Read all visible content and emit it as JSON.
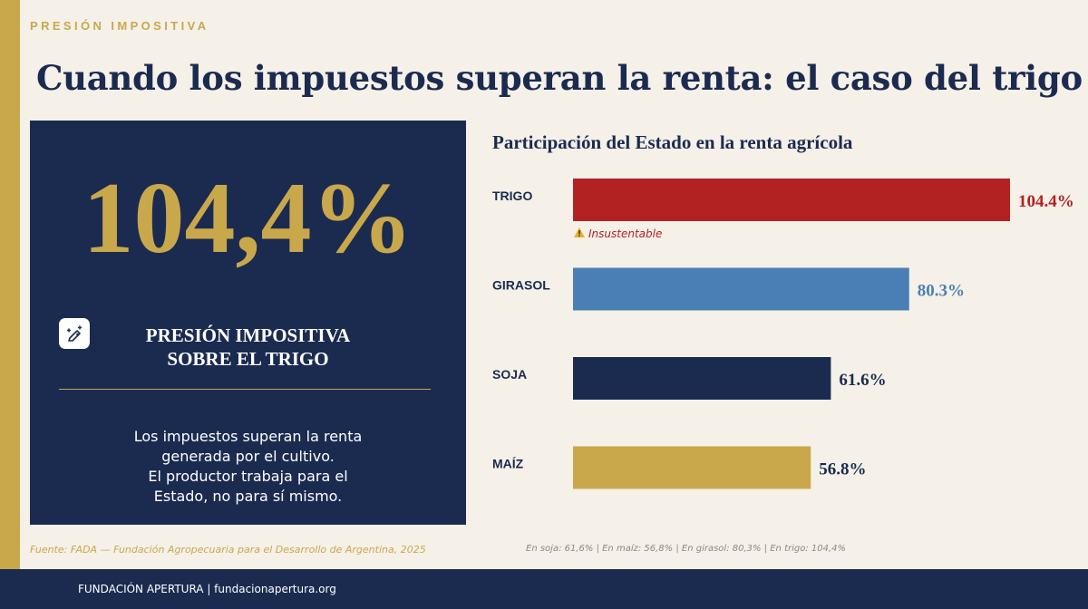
{
  "header": {
    "eyebrow": "PRESIÓN IMPOSITIVA",
    "title": "Cuando los impuestos superan la renta: el caso del trigo"
  },
  "panel": {
    "big_stat": "104,4%",
    "icon": "tag-icon",
    "heading_line1": "PRESIÓN IMPOSITIVA",
    "heading_line2": "SOBRE EL TRIGO",
    "text_lines": [
      "Los impuestos superan la renta",
      "generada por el cultivo.",
      "El productor trabaja para el",
      "Estado, no para sí mismo."
    ]
  },
  "chart_data": {
    "type": "bar",
    "orientation": "horizontal",
    "title": "Participación del Estado en la renta agrícola",
    "categories": [
      "TRIGO",
      "GIRASOL",
      "SOJA",
      "MAÍZ"
    ],
    "values": [
      104.4,
      80.3,
      61.6,
      56.8
    ],
    "value_labels": [
      "104.4%",
      "80.3%",
      "61.6%",
      "56.8%"
    ],
    "colors": [
      "#b22222",
      "#4a7fb5",
      "#1b2b50",
      "#c9a84c"
    ],
    "label_colors": [
      "#b22222",
      "#4a7fb5",
      "#1b2b50",
      "#1b2b50"
    ],
    "annotation": {
      "category": "TRIGO",
      "text": "Insustentable",
      "icon": "warning-icon"
    },
    "xlim": [
      0,
      104.4
    ],
    "grid": false,
    "legend": false
  },
  "source": "Fuente: FADA — Fundación Agropecuaria para el Desarrollo de Argentina, 2025",
  "note": "En soja: 61,6% | En maíz: 56,8% | En girasol: 80,3% | En trigo: 104,4%",
  "footer": {
    "text": "FUNDACIÓN APERTURA  |  fundacionapertura.org"
  }
}
